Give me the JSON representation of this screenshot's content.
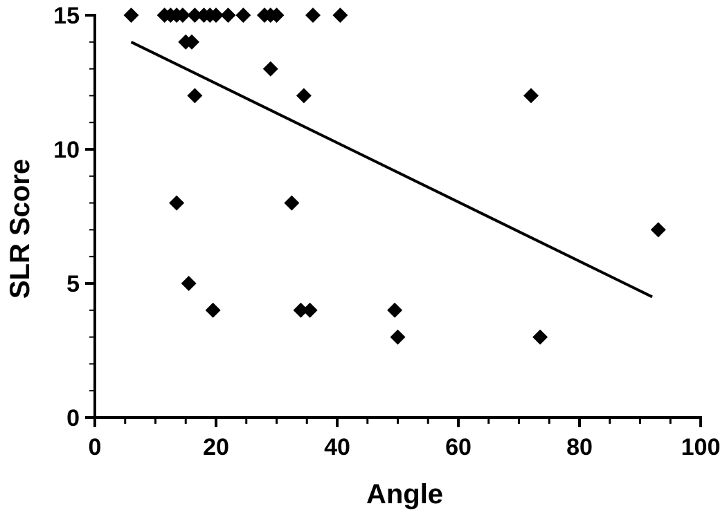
{
  "chart_data": {
    "type": "scatter",
    "title": "",
    "xlabel": "Angle",
    "ylabel": "SLR Score",
    "xlim": [
      0,
      100
    ],
    "ylim": [
      0,
      15
    ],
    "x_ticks": [
      0,
      20,
      40,
      60,
      80,
      100
    ],
    "y_ticks": [
      0,
      5,
      10,
      15
    ],
    "x_minor_step": 5,
    "marker": "diamond",
    "marker_color": "#000000",
    "grid": false,
    "series": [
      {
        "points": [
          {
            "x": 6,
            "y": 15
          },
          {
            "x": 11.5,
            "y": 15
          },
          {
            "x": 12.5,
            "y": 15
          },
          {
            "x": 13.5,
            "y": 15
          },
          {
            "x": 14.5,
            "y": 15
          },
          {
            "x": 16.5,
            "y": 15
          },
          {
            "x": 18,
            "y": 15
          },
          {
            "x": 19,
            "y": 15
          },
          {
            "x": 20,
            "y": 15
          },
          {
            "x": 22,
            "y": 15
          },
          {
            "x": 24.5,
            "y": 15
          },
          {
            "x": 28,
            "y": 15
          },
          {
            "x": 29,
            "y": 15
          },
          {
            "x": 30,
            "y": 15
          },
          {
            "x": 36,
            "y": 15
          },
          {
            "x": 40.5,
            "y": 15
          },
          {
            "x": 15,
            "y": 14
          },
          {
            "x": 16,
            "y": 14
          },
          {
            "x": 29,
            "y": 13
          },
          {
            "x": 16.5,
            "y": 12
          },
          {
            "x": 34.5,
            "y": 12
          },
          {
            "x": 72,
            "y": 12
          },
          {
            "x": 13.5,
            "y": 8
          },
          {
            "x": 32.5,
            "y": 8
          },
          {
            "x": 93,
            "y": 7
          },
          {
            "x": 15.5,
            "y": 5
          },
          {
            "x": 19.5,
            "y": 4
          },
          {
            "x": 34,
            "y": 4
          },
          {
            "x": 35.5,
            "y": 4
          },
          {
            "x": 49.5,
            "y": 4
          },
          {
            "x": 50,
            "y": 3
          },
          {
            "x": 73.5,
            "y": 3
          }
        ]
      }
    ],
    "trendline": {
      "x_start": 6,
      "y_start": 14,
      "x_end": 92,
      "y_end": 4.5
    }
  }
}
